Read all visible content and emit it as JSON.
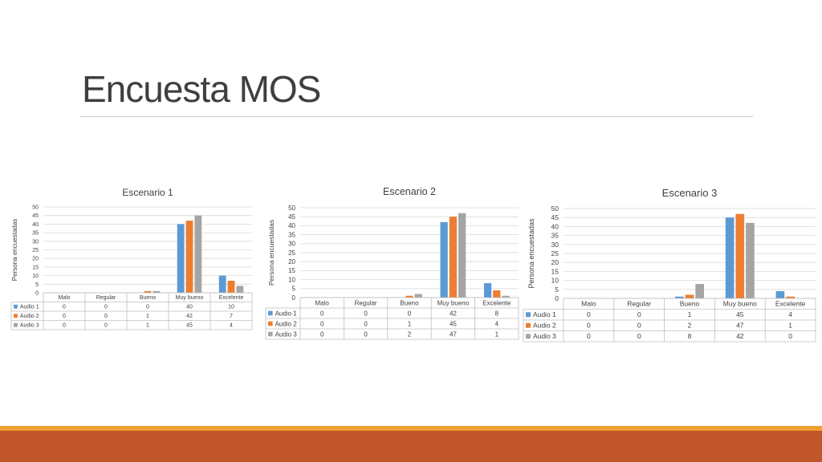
{
  "slide": {
    "title": "Encuesta MOS"
  },
  "colors": {
    "series": [
      "#5b9bd5",
      "#ed7d31",
      "#a5a5a5"
    ],
    "footer_accent": "#f0a030",
    "footer_band": "#c0562a"
  },
  "chart_data": [
    {
      "type": "bar",
      "title": "Escenario 1",
      "ylabel": "Persona encuestadas",
      "xlabel": "",
      "categories": [
        "Malo",
        "Regular",
        "Bueno",
        "Muy bueno",
        "Excelente"
      ],
      "ylim": [
        0,
        50
      ],
      "yticks": [
        0,
        5,
        10,
        15,
        20,
        25,
        30,
        35,
        40,
        45,
        50
      ],
      "grid": true,
      "legend": "data-table",
      "series": [
        {
          "name": "Audio 1",
          "values": [
            0,
            0,
            0,
            40,
            10
          ]
        },
        {
          "name": "Audio 2",
          "values": [
            0,
            0,
            1,
            42,
            7
          ]
        },
        {
          "name": "Audio 3",
          "values": [
            0,
            0,
            1,
            45,
            4
          ]
        }
      ]
    },
    {
      "type": "bar",
      "title": "Escenario 2",
      "ylabel": "Persona encuestadas",
      "xlabel": "",
      "categories": [
        "Malo",
        "Regular",
        "Bueno",
        "Muy bueno",
        "Excelente"
      ],
      "ylim": [
        0,
        50
      ],
      "yticks": [
        0,
        5,
        10,
        15,
        20,
        25,
        30,
        35,
        40,
        45,
        50
      ],
      "grid": true,
      "legend": "data-table",
      "series": [
        {
          "name": "Audio 1",
          "values": [
            0,
            0,
            0,
            42,
            8
          ]
        },
        {
          "name": "Audio 2",
          "values": [
            0,
            0,
            1,
            45,
            4
          ]
        },
        {
          "name": "Audio 3",
          "values": [
            0,
            0,
            2,
            47,
            1
          ]
        }
      ]
    },
    {
      "type": "bar",
      "title": "Escenario 3",
      "ylabel": "Persona encuestadas",
      "xlabel": "",
      "categories": [
        "Malo",
        "Regular",
        "Bueno",
        "Muy bueno",
        "Excelente"
      ],
      "ylim": [
        0,
        50
      ],
      "yticks": [
        0,
        5,
        10,
        15,
        20,
        25,
        30,
        35,
        40,
        45,
        50
      ],
      "grid": true,
      "legend": "data-table",
      "series": [
        {
          "name": "Audio 1",
          "values": [
            0,
            0,
            1,
            45,
            4
          ]
        },
        {
          "name": "Audio 2",
          "values": [
            0,
            0,
            2,
            47,
            1
          ]
        },
        {
          "name": "Audio 3",
          "values": [
            0,
            0,
            8,
            42,
            0
          ]
        }
      ]
    }
  ]
}
